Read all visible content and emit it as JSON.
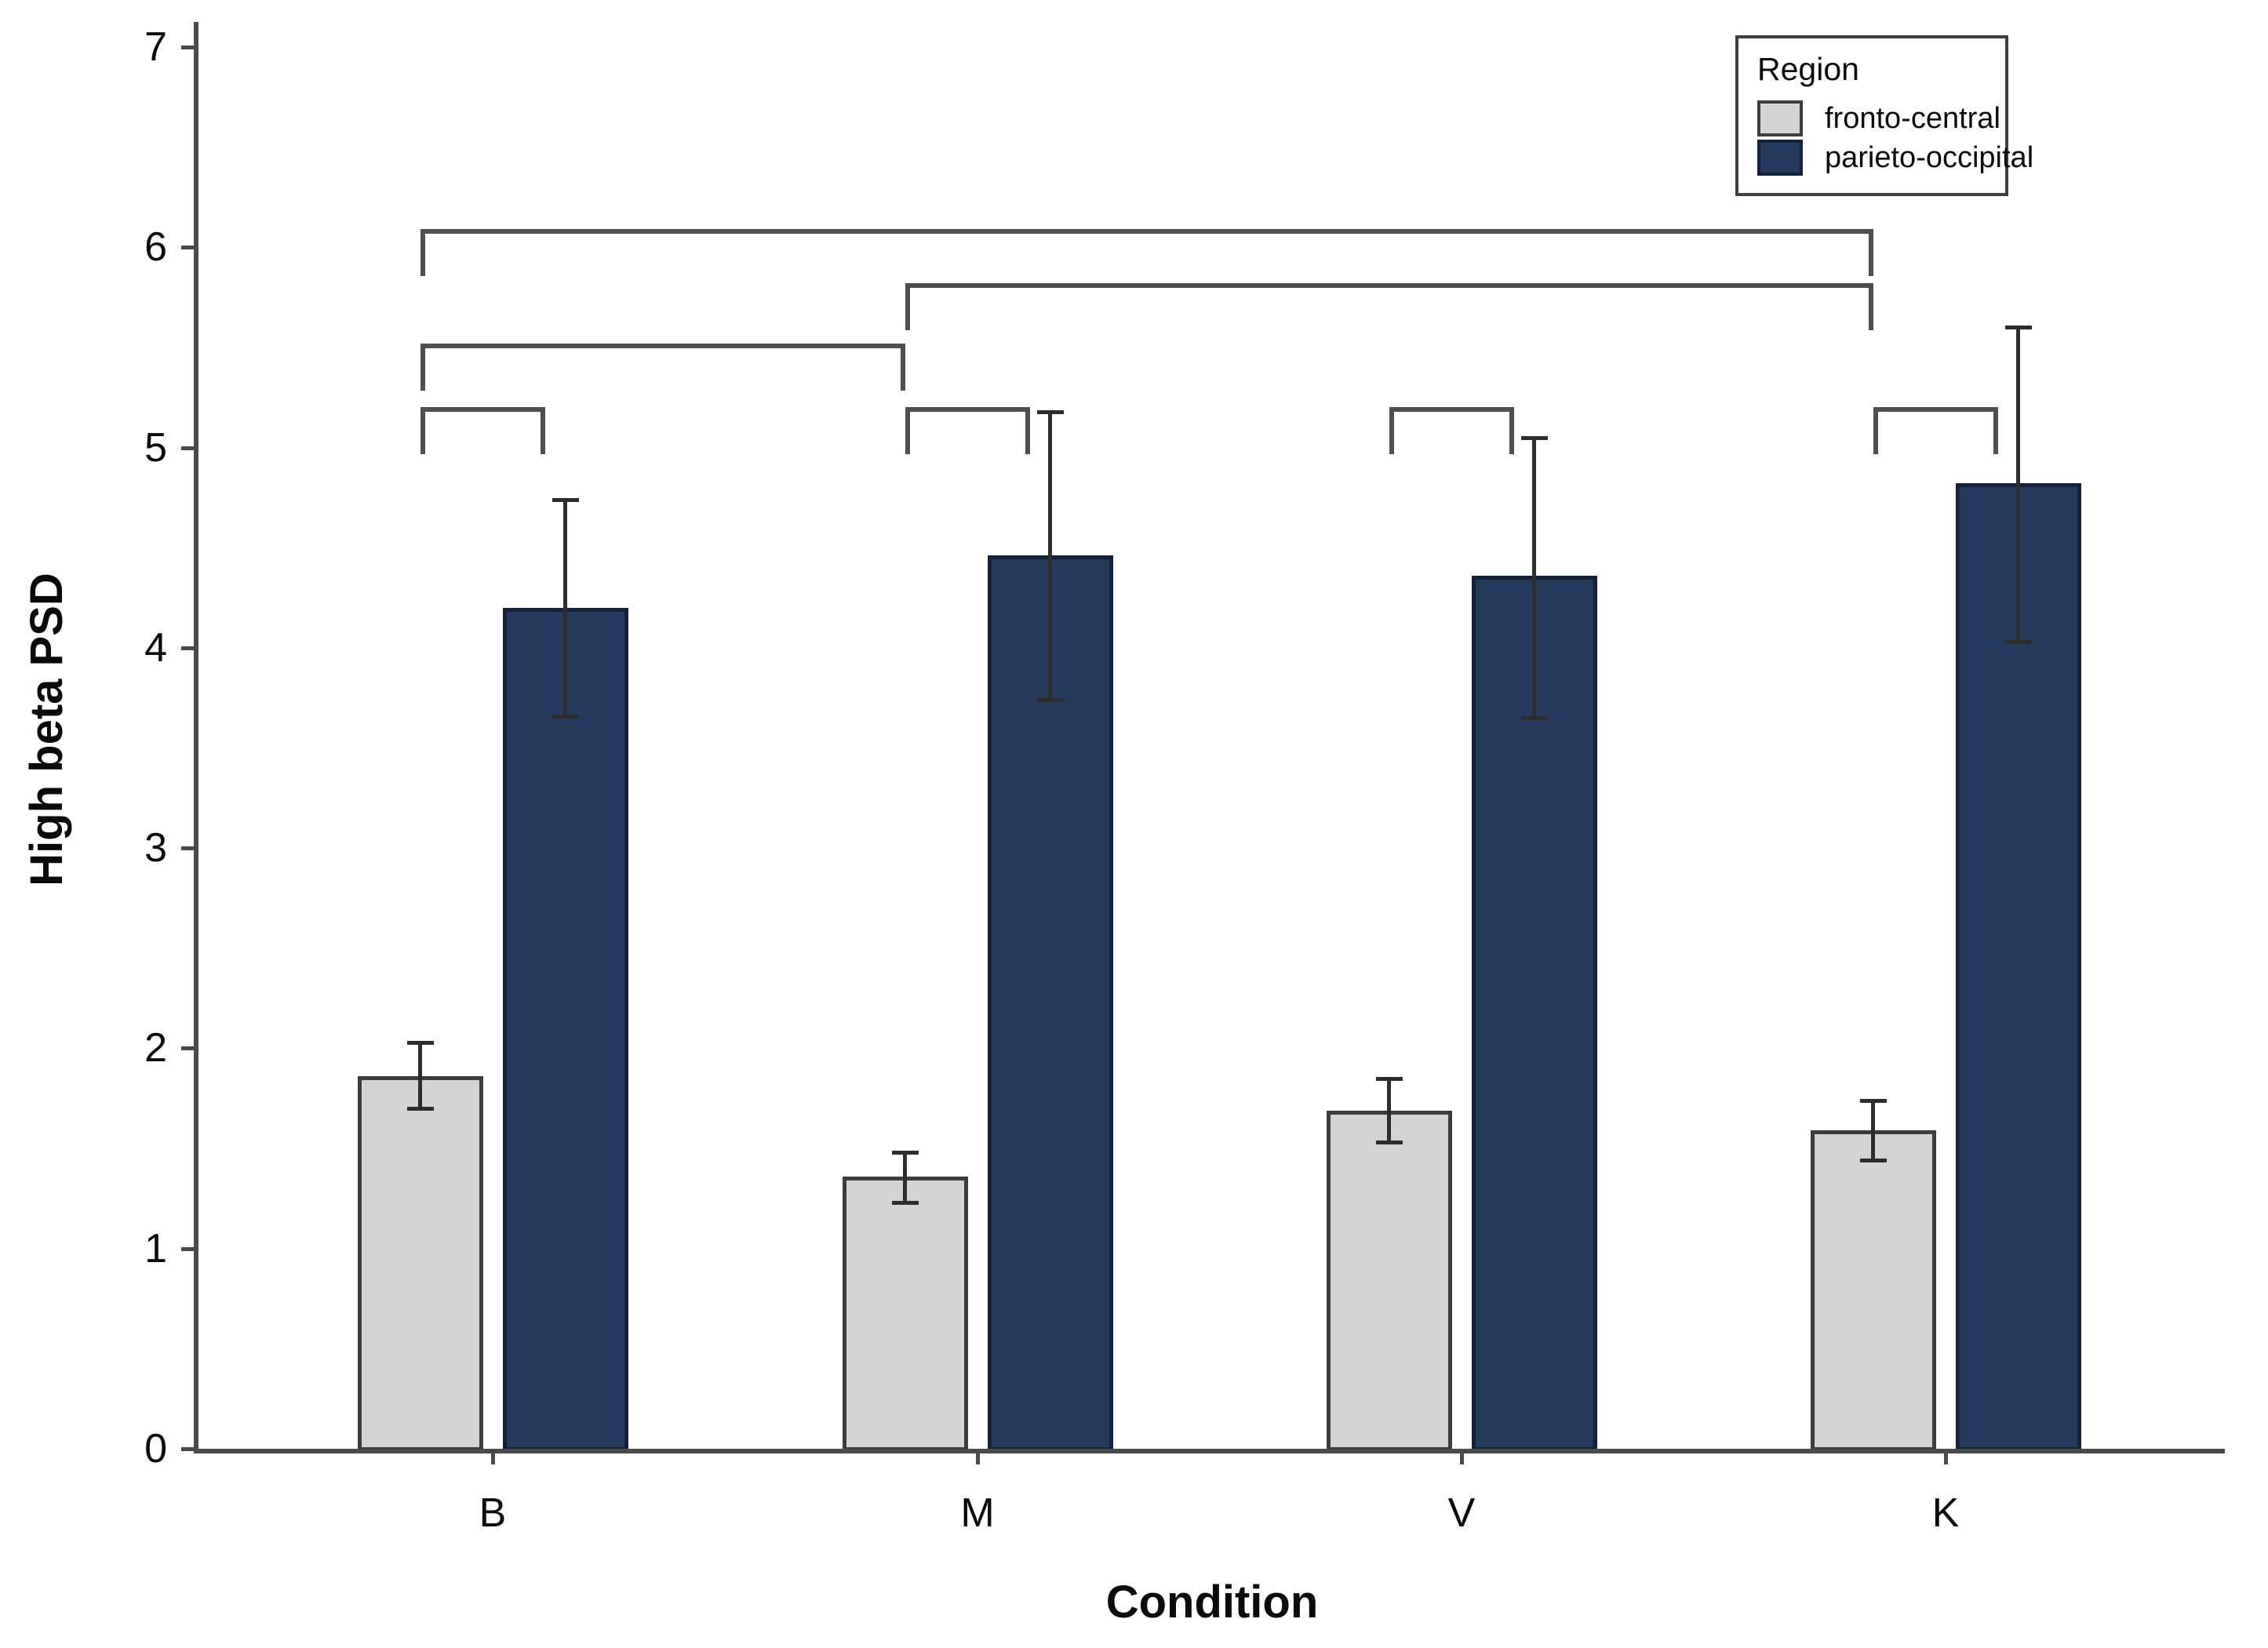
{
  "chart_data": {
    "type": "bar",
    "title": "",
    "xlabel": "Condition",
    "ylabel": "High beta PSD",
    "categories": [
      "B",
      "M",
      "V",
      "K"
    ],
    "ylim": [
      0,
      7
    ],
    "yticks": [
      0,
      1,
      2,
      3,
      4,
      5,
      6,
      7
    ],
    "grid": false,
    "legend": {
      "title": "Region",
      "position": "top-right"
    },
    "series": [
      {
        "name": "fronto-central",
        "fill": "#d4d4d4",
        "border": "#3d3d3d",
        "values": [
          1.86,
          1.36,
          1.69,
          1.59
        ],
        "err_low": [
          1.7,
          1.23,
          1.53,
          1.44
        ],
        "err_high": [
          2.03,
          1.48,
          1.85,
          1.74
        ]
      },
      {
        "name": "parieto-occipital",
        "fill": "#253a5c",
        "border": "#14213c",
        "values": [
          4.2,
          4.46,
          4.36,
          4.82
        ],
        "err_low": [
          3.66,
          3.74,
          3.65,
          4.03
        ],
        "err_high": [
          4.74,
          5.18,
          5.05,
          5.6
        ]
      }
    ],
    "significance_brackets": [
      {
        "from": {
          "group": "B",
          "series": 0
        },
        "to": {
          "group": "K",
          "series": 0
        },
        "level": 6.09
      },
      {
        "from": {
          "group": "M",
          "series": 0
        },
        "to": {
          "group": "K",
          "series": 0
        },
        "level": 5.82
      },
      {
        "from": {
          "group": "B",
          "series": 0
        },
        "to": {
          "group": "M",
          "series": 0
        },
        "level": 5.52
      },
      {
        "from": {
          "group": "B",
          "series": 0
        },
        "to": {
          "group": "B",
          "series": 1
        },
        "level": 5.2
      },
      {
        "from": {
          "group": "M",
          "series": 0
        },
        "to": {
          "group": "M",
          "series": 1
        },
        "level": 5.2
      },
      {
        "from": {
          "group": "V",
          "series": 0
        },
        "to": {
          "group": "V",
          "series": 1
        },
        "level": 5.2
      },
      {
        "from": {
          "group": "K",
          "series": 0
        },
        "to": {
          "group": "K",
          "series": 1
        },
        "level": 5.2
      }
    ],
    "colors": {
      "axis": "#4a4a4a",
      "bracket": "#4f4f4f",
      "error": "#2d2d2d",
      "text": "#0a0a0a",
      "background": "#ffffff"
    }
  }
}
